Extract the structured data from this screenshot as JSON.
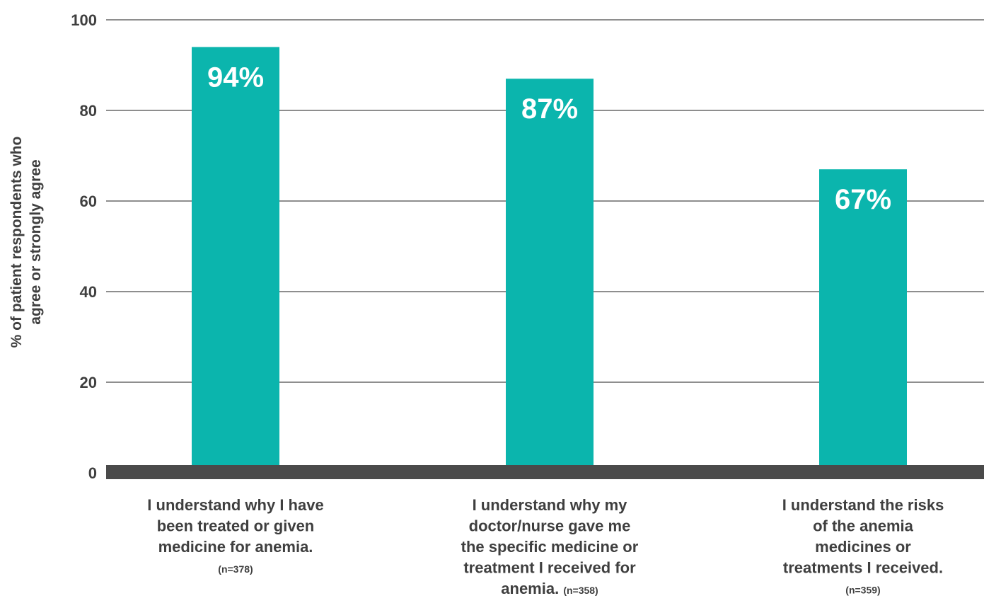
{
  "chart_data": {
    "type": "bar",
    "title": "",
    "xlabel": "",
    "ylabel": [
      "% of patient respondents who",
      "agree or strongly agree"
    ],
    "ylim": [
      0,
      100
    ],
    "yticks": [
      0,
      20,
      40,
      60,
      80,
      100
    ],
    "grid": true,
    "bar_color": "#0bb5ad",
    "baseline_color": "#4a4a4a",
    "categories": [
      {
        "lines": [
          "I understand why I have",
          "been treated or given",
          "medicine for anemia."
        ],
        "n": "(n=378)",
        "n_inline": false
      },
      {
        "lines": [
          "I understand why my",
          "doctor/nurse gave me",
          "the specific medicine or",
          "treatment I received for",
          "anemia."
        ],
        "n": "(n=358)",
        "n_inline": true
      },
      {
        "lines": [
          "I understand the risks",
          "of the anemia",
          "medicines or",
          "treatments I received."
        ],
        "n": "(n=359)",
        "n_inline": false
      }
    ],
    "values": [
      94,
      87,
      67
    ],
    "data_labels": [
      "94%",
      "87%",
      "67%"
    ]
  }
}
